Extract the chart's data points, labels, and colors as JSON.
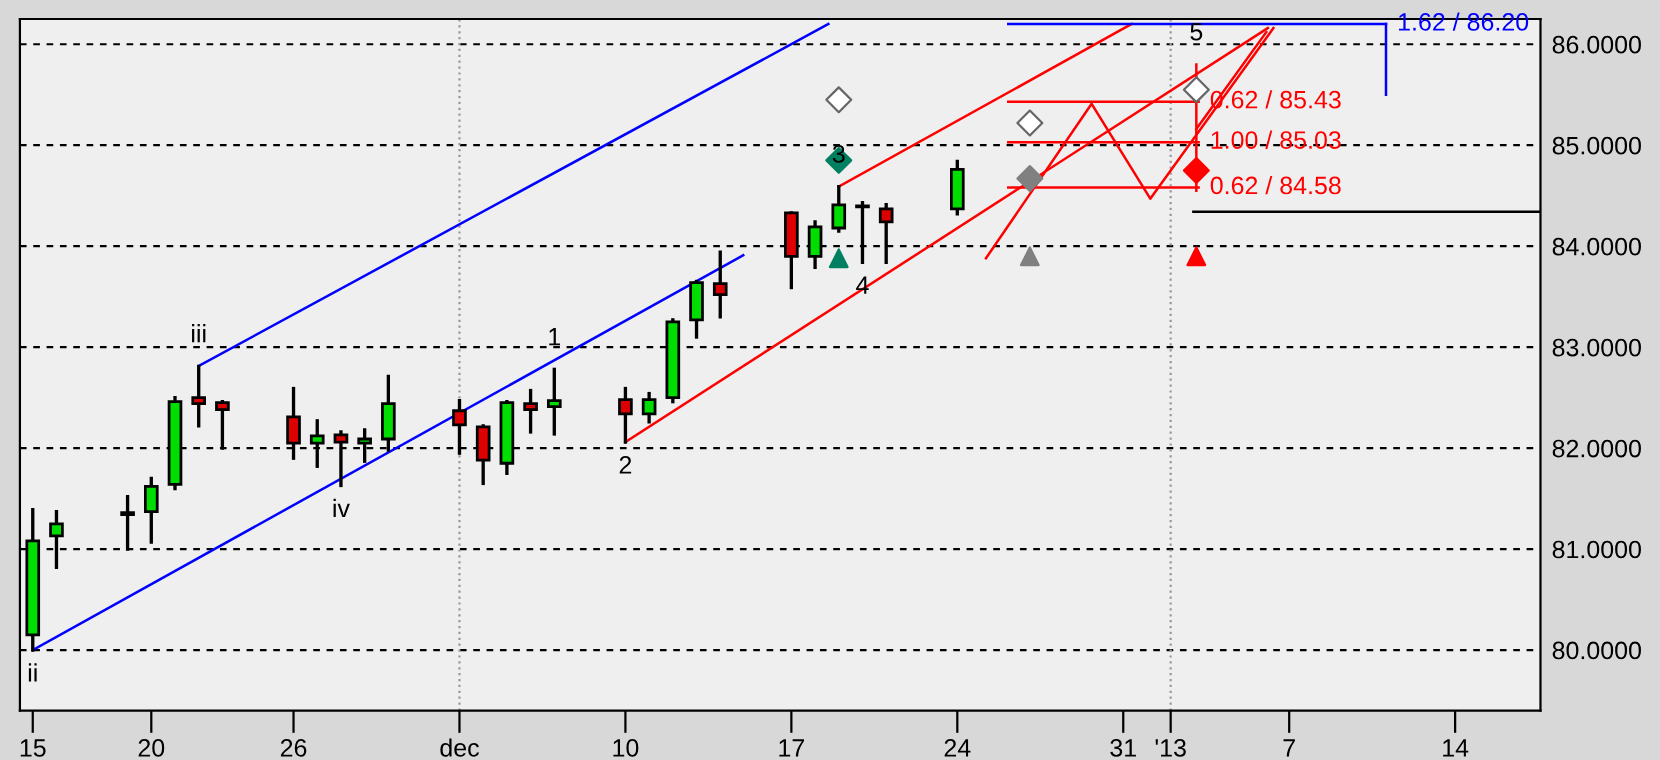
{
  "chart_data": {
    "type": "candlestick",
    "x": [
      "2012-11-15",
      "2012-11-16",
      "2012-11-19",
      "2012-11-20",
      "2012-11-21",
      "2012-11-22",
      "2012-11-23",
      "2012-11-26",
      "2012-11-27",
      "2012-11-28",
      "2012-11-29",
      "2012-11-30",
      "2012-12-03",
      "2012-12-04",
      "2012-12-05",
      "2012-12-06",
      "2012-12-07",
      "2012-12-10",
      "2012-12-11",
      "2012-12-12",
      "2012-12-13",
      "2012-12-14",
      "2012-12-17",
      "2012-12-18",
      "2012-12-19",
      "2012-12-20",
      "2012-12-21",
      "2012-12-24"
    ],
    "ohlc": [
      [
        80.15,
        81.39,
        80.0,
        81.08
      ],
      [
        81.13,
        81.37,
        80.82,
        81.25
      ],
      [
        81.34,
        81.52,
        81.0,
        81.36
      ],
      [
        81.37,
        81.7,
        81.07,
        81.62
      ],
      [
        81.64,
        82.5,
        81.6,
        82.46
      ],
      [
        82.5,
        82.81,
        82.22,
        82.44
      ],
      [
        82.45,
        82.46,
        82.0,
        82.38
      ],
      [
        82.31,
        82.59,
        81.9,
        82.05
      ],
      [
        82.05,
        82.27,
        81.82,
        82.12
      ],
      [
        82.13,
        82.16,
        81.63,
        82.06
      ],
      [
        82.05,
        82.18,
        81.87,
        82.09
      ],
      [
        82.09,
        82.71,
        81.98,
        82.44
      ],
      [
        82.37,
        82.47,
        81.95,
        82.23
      ],
      [
        82.21,
        82.22,
        81.65,
        81.88
      ],
      [
        81.85,
        82.46,
        81.75,
        82.45
      ],
      [
        82.44,
        82.57,
        82.16,
        82.38
      ],
      [
        82.41,
        82.78,
        82.14,
        82.47
      ],
      [
        82.48,
        82.59,
        82.06,
        82.34
      ],
      [
        82.34,
        82.54,
        82.26,
        82.48
      ],
      [
        82.5,
        83.27,
        82.46,
        83.25
      ],
      [
        83.27,
        83.65,
        83.1,
        83.64
      ],
      [
        83.63,
        83.94,
        83.3,
        83.52
      ],
      [
        84.33,
        84.33,
        83.59,
        83.9
      ],
      [
        83.9,
        84.24,
        83.79,
        84.19
      ],
      [
        84.18,
        84.59,
        84.15,
        84.41
      ],
      [
        84.4,
        84.43,
        83.84,
        84.39
      ],
      [
        84.37,
        84.41,
        83.84,
        84.24
      ],
      [
        84.37,
        84.84,
        84.32,
        84.76
      ]
    ],
    "colors": [
      "#00dd00",
      "#00dd00",
      "#00dd00",
      "#00dd00",
      "#00dd00",
      "#dd0000",
      "#dd0000",
      "#dd0000",
      "#00dd00",
      "#dd0000",
      "#00dd00",
      "#00dd00",
      "#dd0000",
      "#dd0000",
      "#00dd00",
      "#dd0000",
      "#00dd00",
      "#dd0000",
      "#00dd00",
      "#00dd00",
      "#00dd00",
      "#dd0000",
      "#dd0000",
      "#00dd00",
      "#00dd00",
      "#dd0000",
      "#dd0000",
      "#00dd00"
    ],
    "xlim": [
      "2012-11-14T11:00",
      "2013-01-17T14:24"
    ],
    "xticks": [
      {
        "value": "2012-11-15",
        "label": "15"
      },
      {
        "value": "2012-11-20",
        "label": "20"
      },
      {
        "value": "2012-11-26",
        "label": "26"
      },
      {
        "value": "2012-12-03",
        "label": "dec"
      },
      {
        "value": "2012-12-10",
        "label": "10"
      },
      {
        "value": "2012-12-17",
        "label": "17"
      },
      {
        "value": "2012-12-24",
        "label": "24"
      },
      {
        "value": "2012-12-31",
        "label": "31"
      },
      {
        "value": "2013-01-02",
        "label": "'13"
      },
      {
        "value": "2013-01-07",
        "label": "7"
      },
      {
        "value": "2013-01-14",
        "label": "14"
      }
    ],
    "ylim": [
      79.4,
      86.25
    ],
    "yticks": [
      {
        "value": 80,
        "label": "80.0000"
      },
      {
        "value": 81,
        "label": "81.0000"
      },
      {
        "value": 82,
        "label": "82.0000"
      },
      {
        "value": 83,
        "label": "83.0000"
      },
      {
        "value": 84,
        "label": "84.0000"
      },
      {
        "value": 85,
        "label": "85.0000"
      },
      {
        "value": 86,
        "label": "86.0000"
      }
    ],
    "grid": "y",
    "ref_lines": [
      {
        "axis": "x",
        "value": "2012-12-03",
        "color": "#999999",
        "line_style": "dotted"
      },
      {
        "axis": "x",
        "value": "2013-01-02",
        "color": "#999999",
        "line_style": "dotted"
      }
    ],
    "series": [
      {
        "type": "line",
        "color": "#0000ff",
        "x": [
          "2012-11-22T01:12",
          "2012-12-18T13:26"
        ],
        "values": [
          82.82,
          86.2
        ]
      },
      {
        "type": "line",
        "color": "#0000ff",
        "x": [
          "2012-11-15",
          "2012-12-14T23:17"
        ],
        "values": [
          80.0,
          83.91
        ]
      },
      {
        "type": "line",
        "color": "#ff0000",
        "x": [
          "2012-12-10",
          "2013-01-06T02:24"
        ],
        "values": [
          82.06,
          86.16
        ]
      },
      {
        "type": "line",
        "color": "#ff0000",
        "x": [
          "2012-12-19",
          "2012-12-31T08:24"
        ],
        "values": [
          84.59,
          86.2
        ]
      },
      {
        "type": "line",
        "color": "#ff0000",
        "x": [
          "2012-12-25T05:00",
          "2012-12-29T16:00",
          "2013-01-01T03:22",
          "2013-01-06T08:00"
        ],
        "values": [
          83.88,
          85.41,
          84.47,
          86.16
        ]
      },
      {
        "type": "line",
        "color": "#ff0000",
        "x": [
          "2013-01-03T02:00",
          "2013-01-06T00:48"
        ],
        "values": [
          85.16,
          86.12
        ]
      },
      {
        "type": "line",
        "color": "#ff0000",
        "x": [
          "2012-12-26T03:36",
          "2013-01-03T04:19"
        ],
        "values": [
          85.43,
          85.43
        ],
        "value_labels": [
          null,
          "0.62 / 85.43"
        ]
      },
      {
        "type": "line",
        "color": "#ff0000",
        "x": [
          "2012-12-26T03:36",
          "2013-01-03T04:19"
        ],
        "values": [
          85.03,
          85.03
        ],
        "value_labels": [
          null,
          "1.00 / 85.03"
        ]
      },
      {
        "type": "line",
        "color": "#ff0000",
        "x": [
          "2012-12-26T03:36",
          "2013-01-03T04:19"
        ],
        "values": [
          84.58,
          84.58
        ],
        "value_labels": [
          null,
          "0.62 / 84.58"
        ]
      },
      {
        "type": "line",
        "color": "#0000ff",
        "x": [
          "2012-12-26T03:36",
          "2013-01-11T02:00"
        ],
        "values": [
          86.2,
          86.2
        ],
        "value_labels": [
          null,
          "1.62 / 86.20"
        ]
      },
      {
        "type": "line",
        "color": "#0000ff",
        "x": [
          "2013-01-11T02:00",
          "2013-01-11T02:00"
        ],
        "values": [
          86.2,
          85.5
        ]
      },
      {
        "type": "line",
        "color": "#ff0000",
        "x": [
          "2013-01-03T02:00",
          "2013-01-03T02:00"
        ],
        "values": [
          85.8,
          84.55
        ]
      },
      {
        "type": "line",
        "color": "#000000",
        "x": [
          "2013-01-02T23:00",
          "2013-01-17T14:24"
        ],
        "values": [
          84.34,
          84.34
        ]
      },
      {
        "type": "scatter",
        "marker": "diamond",
        "color": "#008060",
        "x": [
          "2012-12-19"
        ],
        "values": [
          84.85
        ]
      },
      {
        "type": "scatter",
        "marker": "triangle",
        "color": "#008060",
        "x": [
          "2012-12-19"
        ],
        "values": [
          83.88
        ]
      },
      {
        "type": "scatter",
        "marker": "diamond",
        "color": "#ffffff",
        "x": [
          "2012-12-19",
          "2012-12-27T01:26",
          "2013-01-03T02:00"
        ],
        "values": [
          85.45,
          85.22,
          85.55
        ]
      },
      {
        "type": "scatter",
        "marker": "diamond",
        "color": "#808080",
        "x": [
          "2012-12-27T01:26"
        ],
        "values": [
          84.67
        ]
      },
      {
        "type": "scatter",
        "marker": "triangle",
        "color": "#808080",
        "x": [
          "2012-12-27T01:26"
        ],
        "values": [
          83.9
        ]
      },
      {
        "type": "scatter",
        "marker": "diamond",
        "color": "#ff0000",
        "x": [
          "2013-01-03T02:00"
        ],
        "values": [
          84.75
        ]
      },
      {
        "type": "scatter",
        "marker": "triangle",
        "color": "#ff0000",
        "x": [
          "2013-01-03T02:00"
        ],
        "values": [
          83.9
        ]
      }
    ],
    "annotations": [
      {
        "text": "ii",
        "x": "2012-11-15",
        "y": 80.0
      },
      {
        "text": "iii",
        "x": "2012-11-22",
        "y": 82.81
      },
      {
        "text": "iv",
        "x": "2012-11-28",
        "y": 81.63
      },
      {
        "text": "1",
        "x": "2012-12-07",
        "y": 82.78
      },
      {
        "text": "2",
        "x": "2012-12-10",
        "y": 82.06
      },
      {
        "text": "3",
        "x": "2012-12-19",
        "y": 84.59
      },
      {
        "text": "4",
        "x": "2012-12-20",
        "y": 83.84
      },
      {
        "text": "5",
        "x": "2013-01-03T02:00",
        "y": 85.8
      }
    ]
  }
}
